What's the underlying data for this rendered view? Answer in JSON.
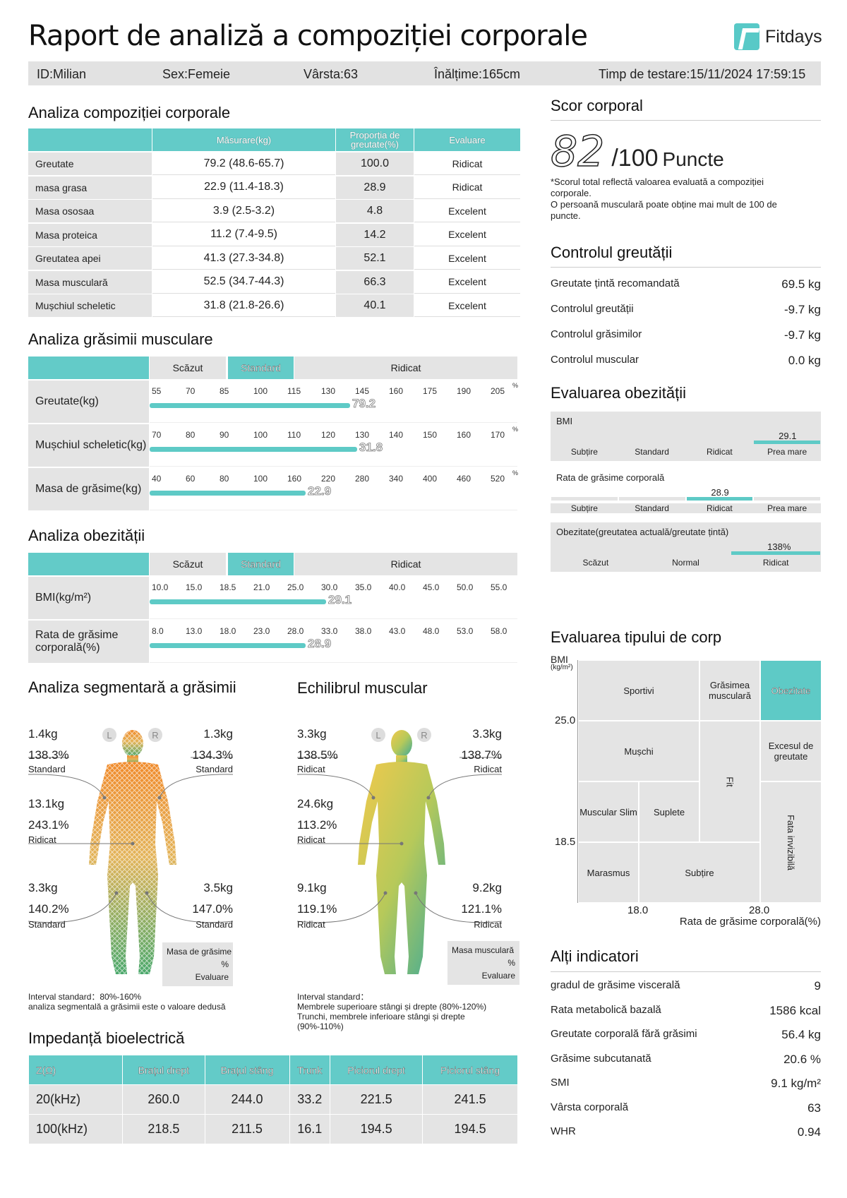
{
  "title": "Raport de analiză a compoziției corporale",
  "brand": "Fitdays",
  "info": {
    "id": "ID:Milian",
    "sex": "Sex:Femeie",
    "age": "Vârsta:63",
    "height": "Înălțime:165cm",
    "time": "Timp de testare:15/11/2024 17:59:15"
  },
  "composition": {
    "title": "Analiza compoziției corporale",
    "headers": [
      "Măsurare(kg)",
      "Proporția de greutate(%)",
      "Evaluare"
    ],
    "rows": [
      {
        "label": "Greutate",
        "measure": "79.2 (48.6-65.7)",
        "ratio": "100.0",
        "eval": "Ridicat"
      },
      {
        "label": "masa grasa",
        "measure": "22.9 (11.4-18.3)",
        "ratio": "28.9",
        "eval": "Ridicat"
      },
      {
        "label": "Masa ososaa",
        "measure": "3.9 (2.5-3.2)",
        "ratio": "4.8",
        "eval": "Excelent"
      },
      {
        "label": "Masa proteica",
        "measure": "11.2 (7.4-9.5)",
        "ratio": "14.2",
        "eval": "Excelent"
      },
      {
        "label": "Greutatea apei",
        "measure": "41.3 (27.3-34.8)",
        "ratio": "52.1",
        "eval": "Excelent"
      },
      {
        "label": "Masa musculară",
        "measure": "52.5 (34.7-44.3)",
        "ratio": "66.3",
        "eval": "Excelent"
      },
      {
        "label": "Mușchiul scheletic",
        "measure": "31.8 (21.8-26.6)",
        "ratio": "40.1",
        "eval": "Excelent"
      }
    ]
  },
  "muscle_fat": {
    "title": "Analiza grăsimii musculare",
    "levels": [
      "Scăzut",
      "Standard",
      "Ridicat"
    ],
    "pct": "%",
    "rows": [
      {
        "label": "Greutate(kg)",
        "ticks": [
          "55",
          "70",
          "85",
          "100",
          "115",
          "130",
          "145",
          "160",
          "175",
          "190",
          "205"
        ],
        "value": "79.2",
        "fill": 0.58
      },
      {
        "label": "Mușchiul scheletic(kg)",
        "ticks": [
          "70",
          "80",
          "90",
          "100",
          "110",
          "120",
          "130",
          "140",
          "150",
          "160",
          "170"
        ],
        "value": "31.8",
        "fill": 0.6
      },
      {
        "label": "Masa de grăsime(kg)",
        "ticks": [
          "40",
          "60",
          "80",
          "100",
          "160",
          "220",
          "280",
          "340",
          "400",
          "460",
          "520"
        ],
        "value": "22.9",
        "fill": 0.45
      }
    ]
  },
  "obesity": {
    "title": "Analiza obezității",
    "levels": [
      "Scăzut",
      "Standard",
      "Ridicat"
    ],
    "rows": [
      {
        "label": "BMI(kg/m²)",
        "ticks": [
          "10.0",
          "15.0",
          "18.5",
          "21.0",
          "25.0",
          "30.0",
          "35.0",
          "40.0",
          "45.0",
          "50.0",
          "55.0"
        ],
        "value": "29.1",
        "fill": 0.51
      },
      {
        "label": "Rata de grăsime corporală(%)",
        "ticks": [
          "8.0",
          "13.0",
          "18.0",
          "23.0",
          "28.0",
          "33.0",
          "38.0",
          "43.0",
          "48.0",
          "53.0",
          "58.0"
        ],
        "value": "28.9",
        "fill": 0.45
      }
    ]
  },
  "segfat": {
    "title": "Analiza segmentară a grăsimii",
    "L": "L",
    "R": "R",
    "la": {
      "kg": "1.4kg",
      "pct": "138.3%",
      "ev": "Standard"
    },
    "ra": {
      "kg": "1.3kg",
      "pct": "134.3%",
      "ev": "Standard"
    },
    "tr": {
      "kg": "13.1kg",
      "pct": "243.1%",
      "ev": "Ridicat"
    },
    "ll": {
      "kg": "3.3kg",
      "pct": "140.2%",
      "ev": "Standard"
    },
    "rl": {
      "kg": "3.5kg",
      "pct": "147.0%",
      "ev": "Standard"
    },
    "legend": {
      "a": "Masa de grăsime",
      "b": "%",
      "c": "Evaluare"
    },
    "note1": "Interval standard：80%-160%",
    "note2": "analiza segmentală a grăsimii este o valoare dedusă"
  },
  "balance": {
    "title": "Echilibrul muscular",
    "L": "L",
    "R": "R",
    "la": {
      "kg": "3.3kg",
      "pct": "138.5%",
      "ev": "Ridicat"
    },
    "ra": {
      "kg": "3.3kg",
      "pct": "138.7%",
      "ev": "Ridicat"
    },
    "tr": {
      "kg": "24.6kg",
      "pct": "113.2%",
      "ev": "Ridicat"
    },
    "ll": {
      "kg": "9.1kg",
      "pct": "119.1%",
      "ev": "Ridicat"
    },
    "rl": {
      "kg": "9.2kg",
      "pct": "121.1%",
      "ev": "Ridicat"
    },
    "legend": {
      "a": "Masa musculară",
      "b": "%",
      "c": "Evaluare"
    },
    "note1": "Interval standard：",
    "note2": "Membrele superioare stângi și drepte (80%-120%)",
    "note3": "Trunchi, membrele inferioare stângi și drepte",
    "note4": "(90%-110%)"
  },
  "impedance": {
    "title": "Impedanță bioelectrică",
    "headers": [
      "Z(Ω)",
      "Brațul drept",
      "Brațul stâng",
      "Trunk",
      "Piciorul drept",
      "Piciorul stâng"
    ],
    "rows": [
      [
        "20(kHz)",
        "260.0",
        "244.0",
        "33.2",
        "221.5",
        "241.5"
      ],
      [
        "100(kHz)",
        "218.5",
        "211.5",
        "16.1",
        "194.5",
        "194.5"
      ]
    ]
  },
  "score": {
    "title": "Scor corporal",
    "value": "82",
    "max": "/100",
    "unit": "Puncte",
    "note1": "*Scorul total reflectă valoarea evaluată a compoziției corporale.",
    "note2": "O persoană musculară poate obține mai mult de 100 de puncte."
  },
  "weight_control": {
    "title": "Controlul greutății",
    "rows": [
      {
        "k": "Greutate țintă recomandată",
        "v": "69.5 kg"
      },
      {
        "k": "Controlul greutății",
        "v": "-9.7 kg"
      },
      {
        "k": "Controlul grăsimilor",
        "v": "-9.7 kg"
      },
      {
        "k": "Controlul muscular",
        "v": "0.0 kg"
      }
    ]
  },
  "obesity_eval": {
    "title": "Evaluarea obezității",
    "bmi": {
      "label": "BMI",
      "value": "29.1",
      "cats": [
        "Subțire",
        "Standard",
        "Ridicat",
        "Prea mare"
      ],
      "active": 3
    },
    "bfr": {
      "label": "Rata de grăsime corporală",
      "value": "28.9",
      "cats": [
        "Subțire",
        "Standard",
        "Ridicat",
        "Prea mare"
      ],
      "active": 2
    },
    "ob": {
      "label": "Obezitate(greutatea actuală/greutate țintă)",
      "value": "138%",
      "cats": [
        "Scăzut",
        "Normal",
        "Ridicat"
      ],
      "active": 2
    }
  },
  "body_type": {
    "title": "Evaluarea tipului de corp",
    "ylab1": "BMI",
    "ylab2": "(kg/m²)",
    "y1": "25.0",
    "y2": "18.5",
    "x1": "18.0",
    "x2": "28.0",
    "xlab": "Rata de grăsime corporală(%)",
    "cells": {
      "sportivi": "Sportivi",
      "grasmusc": "Grăsimea musculară",
      "obezitate": "Obezitate",
      "muschi": "Mușchi",
      "excesul": "Excesul de greutate",
      "fit": "Fit",
      "slim": "Muscular Slim",
      "suplete": "Suplete",
      "fata": "Fata invizibilă",
      "marasmus": "Marasmus",
      "subtire": "Subțire"
    }
  },
  "other": {
    "title": "Alți indicatori",
    "rows": [
      {
        "k": "gradul de grăsime viscerală",
        "v": "9"
      },
      {
        "k": "Rata metabolică bazală",
        "v": "1586 kcal"
      },
      {
        "k": "Greutate corporală fără grăsimi",
        "v": "56.4 kg"
      },
      {
        "k": "Grăsime subcutanată",
        "v": "20.6 %"
      },
      {
        "k": "SMI",
        "v": "9.1 kg/m²"
      },
      {
        "k": "Vârsta corporală",
        "v": "63"
      },
      {
        "k": "WHR",
        "v": "0.94"
      }
    ]
  }
}
